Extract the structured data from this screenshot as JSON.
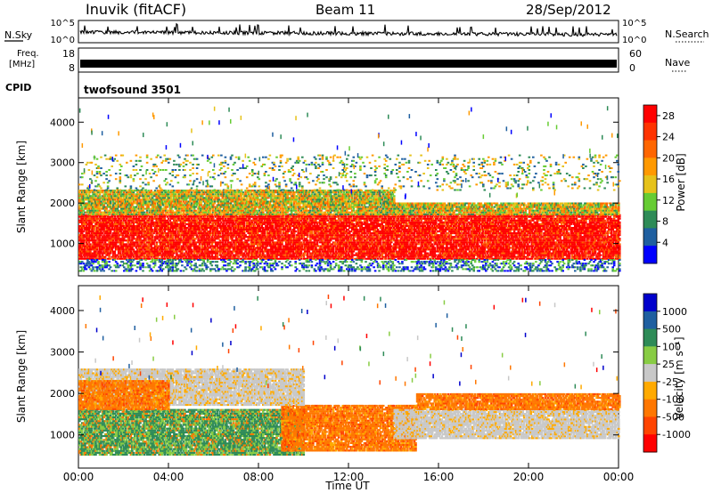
{
  "header": {
    "station": "Inuvik (fitACF)",
    "beam": "Beam 11",
    "date": "28/Sep/2012"
  },
  "noise_panel": {
    "left_label": "N.Sky",
    "right_label": "N.Search",
    "tick_labels": [
      "10^5",
      "10^0"
    ],
    "right_tick_labels": [
      "10^5",
      "10^0"
    ]
  },
  "freq_panel": {
    "left_label_1": "Freq.",
    "left_label_2": "[MHz]",
    "right_label": "Nave",
    "left_ticks": [
      "18",
      "8"
    ],
    "right_ticks": [
      "60",
      "0"
    ]
  },
  "cpid_panel": {
    "left_label": "CPID",
    "mode": "twofsound 3501"
  },
  "colors": {
    "power_scale": [
      "#0000ff",
      "#1f5fa0",
      "#2e8b57",
      "#66cc33",
      "#e6c21a",
      "#ff9900",
      "#ff6600",
      "#ff3300",
      "#ff0000"
    ],
    "velocity_scale": [
      "#ff0000",
      "#ff4400",
      "#ff7700",
      "#ffaa00",
      "#c8c8c8",
      "#88cc44",
      "#2e8b57",
      "#1f5fa0",
      "#0000cc"
    ]
  },
  "chart_data": [
    {
      "type": "heatmap",
      "panel": "power",
      "ylabel": "Slant Range [km]",
      "ylim": [
        200,
        4600
      ],
      "yticks": [
        "1000",
        "2000",
        "3000",
        "4000"
      ],
      "xlim": [
        "00:00",
        "24:00"
      ],
      "colorbar_label": "Power [dB]",
      "colorbar_ticks": [
        "4",
        "8",
        "12",
        "16",
        "20",
        "24",
        "28"
      ],
      "colorbar_range": [
        0,
        30
      ],
      "bands": [
        {
          "t0": 0,
          "t1": 24,
          "r0": 600,
          "r1": 1700,
          "level": "strong"
        },
        {
          "t0": 0,
          "t1": 14,
          "r0": 1700,
          "r1": 2300,
          "level": "medium"
        },
        {
          "t0": 14,
          "t1": 24,
          "r0": 1700,
          "r1": 2000,
          "level": "medium"
        },
        {
          "t0": 0,
          "t1": 24,
          "r0": 300,
          "r1": 600,
          "level": "weak"
        },
        {
          "t0": 0,
          "t1": 24,
          "r0": 2300,
          "r1": 3200,
          "level": "sparse"
        }
      ]
    },
    {
      "type": "heatmap",
      "panel": "velocity",
      "ylabel": "Slant Range [km]",
      "ylim": [
        200,
        4600
      ],
      "yticks": [
        "1000",
        "2000",
        "3000",
        "4000"
      ],
      "xlim": [
        "00:00",
        "24:00"
      ],
      "xlabel": "Time UT",
      "xticks": [
        "00:00",
        "04:00",
        "08:00",
        "12:00",
        "16:00",
        "20:00",
        "00:00"
      ],
      "colorbar_label": "Velocity [m s⁻¹]",
      "colorbar_ticks": [
        "1000",
        "500",
        "100",
        "25",
        "-25",
        "-100",
        "-500",
        "-1000"
      ],
      "bands": [
        {
          "t0": 0,
          "t1": 10,
          "r0": 500,
          "r1": 1600,
          "level": "green"
        },
        {
          "t0": 9,
          "t1": 15,
          "r0": 600,
          "r1": 1700,
          "level": "orange"
        },
        {
          "t0": 14,
          "t1": 24,
          "r0": 900,
          "r1": 1600,
          "level": "gray"
        },
        {
          "t0": 0,
          "t1": 10,
          "r0": 1700,
          "r1": 2600,
          "level": "gray"
        },
        {
          "t0": 0,
          "t1": 4,
          "r0": 1600,
          "r1": 2300,
          "level": "orange"
        },
        {
          "t0": 15,
          "t1": 24,
          "r0": 1600,
          "r1": 2000,
          "level": "orange"
        }
      ]
    }
  ]
}
